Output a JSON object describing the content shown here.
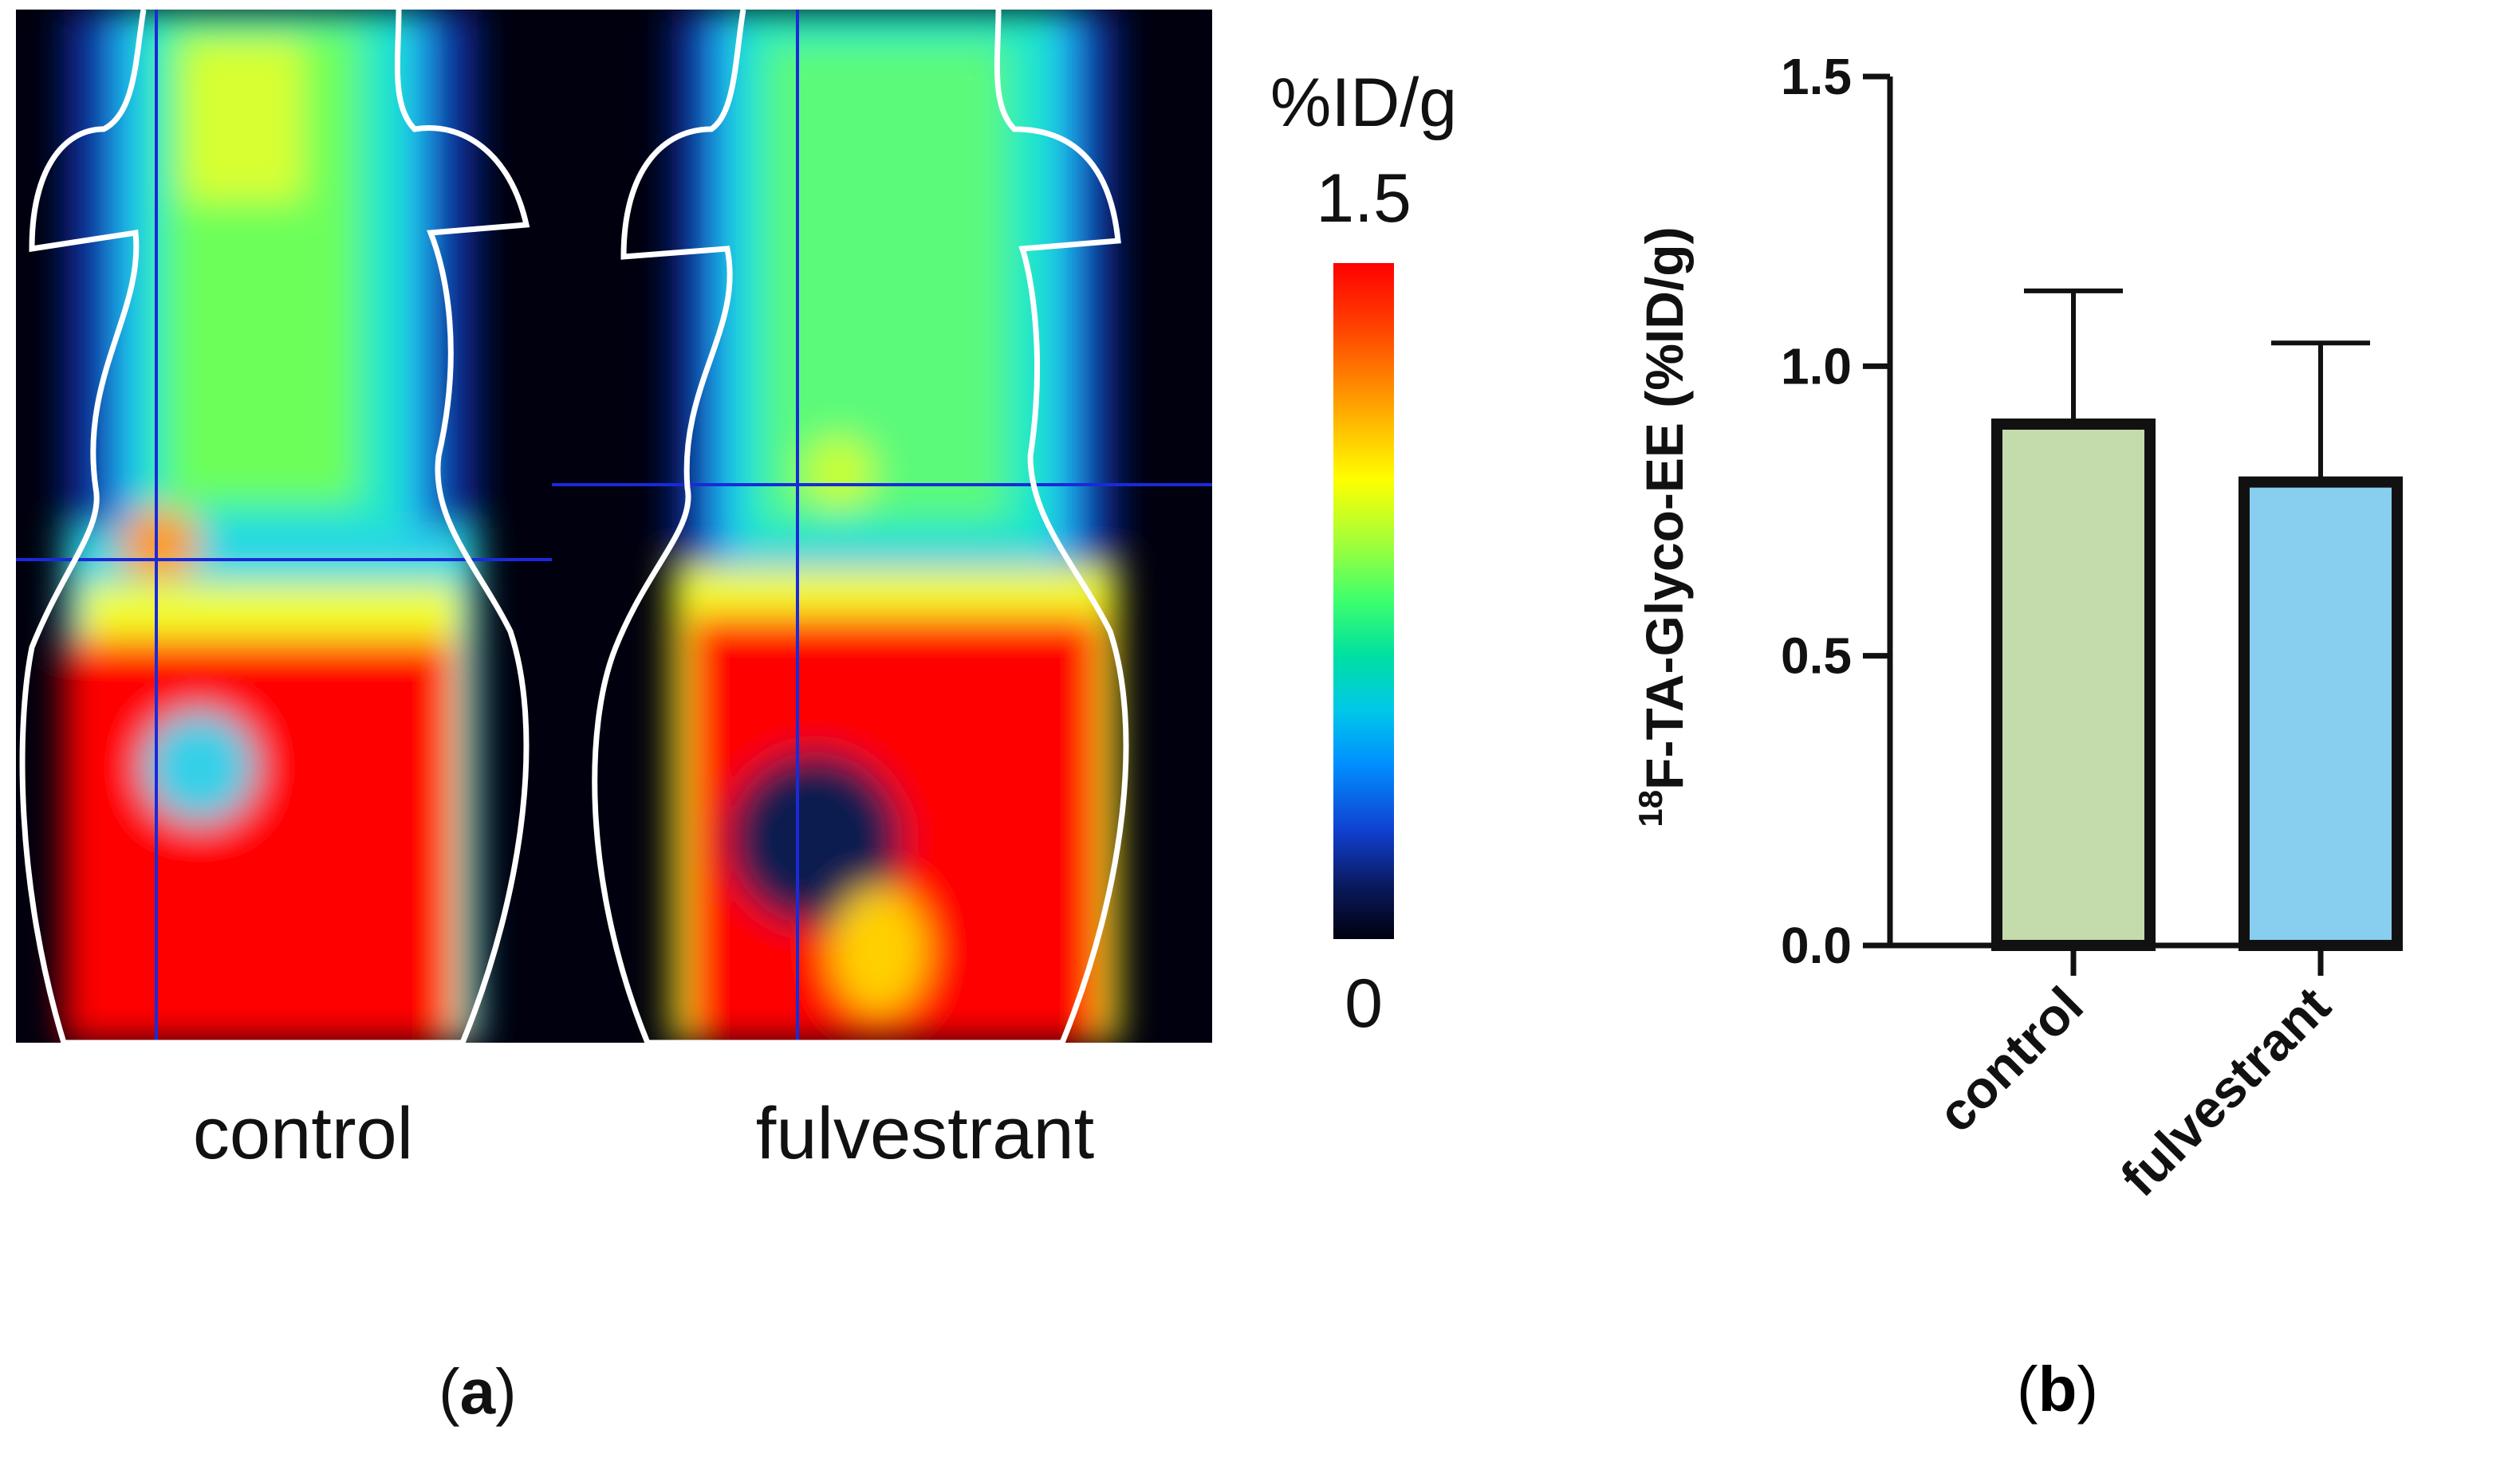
{
  "panel_a": {
    "images": [
      {
        "label": "control"
      },
      {
        "label": "fulvestrant"
      }
    ],
    "colorbar": {
      "unit": "%ID/g",
      "max_label": "1.5",
      "min_label": "0",
      "colormap": "jet"
    },
    "tag_open": "(",
    "tag_letter": "a",
    "tag_close": ")"
  },
  "panel_b": {
    "tag_open": "(",
    "tag_letter": "b",
    "tag_close": ")"
  },
  "chart_data": {
    "type": "bar",
    "categories": [
      "control",
      "fulvestrant"
    ],
    "values": [
      0.9,
      0.8
    ],
    "errors": [
      0.23,
      0.24
    ],
    "bar_colors": [
      "#c4dbab",
      "#87ceef"
    ],
    "ylabel_sup": "18",
    "ylabel": "F-TA-Glyco-EE (%ID/g)",
    "ylim": [
      0,
      1.5
    ],
    "yticks": [
      "0.0",
      "0.5",
      "1.0",
      "1.5"
    ],
    "grid": false
  }
}
